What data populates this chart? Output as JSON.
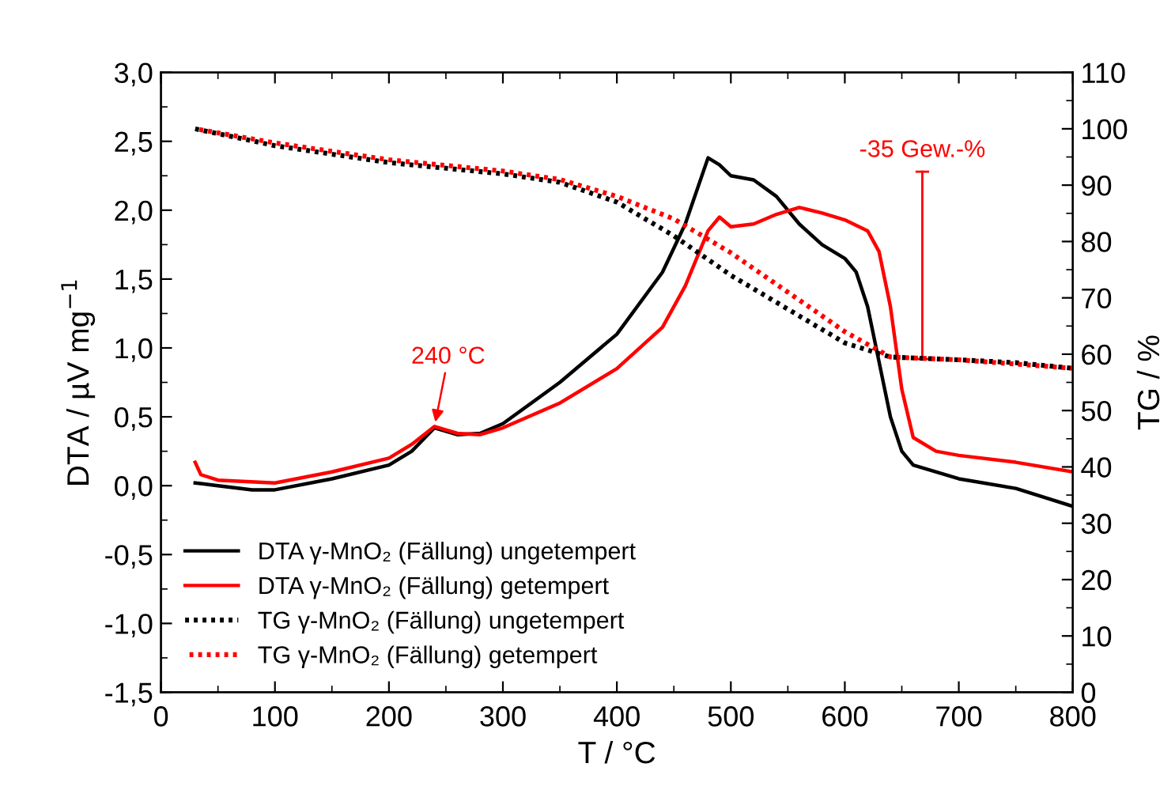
{
  "chart_data": {
    "type": "line",
    "xlabel": "T / °C",
    "ylabel": "DTA / µV mg$^{−1}$",
    "y2label": "TG / %",
    "xlim": [
      0,
      800
    ],
    "xticks": [
      0,
      100,
      200,
      300,
      400,
      500,
      600,
      700,
      800
    ],
    "ylim": [
      -1.5,
      3.0
    ],
    "yticks": [
      {
        "value": -1.5,
        "label": "-1,5"
      },
      {
        "value": -1.0,
        "label": "-1,0"
      },
      {
        "value": -0.5,
        "label": "-0,5"
      },
      {
        "value": 0.0,
        "label": "0,0"
      },
      {
        "value": 0.5,
        "label": "0,5"
      },
      {
        "value": 1.0,
        "label": "1,0"
      },
      {
        "value": 1.5,
        "label": "1,5"
      },
      {
        "value": 2.0,
        "label": "2,0"
      },
      {
        "value": 2.5,
        "label": "2,5"
      },
      {
        "value": 3.0,
        "label": "3,0"
      }
    ],
    "y2lim": [
      0,
      110
    ],
    "y2ticks": [
      0,
      10,
      20,
      30,
      40,
      50,
      60,
      70,
      80,
      90,
      100,
      110
    ],
    "grid": false,
    "legend": "bottom left",
    "series": [
      {
        "name": "DTA γ-MnO₂ (Fällung) ungetempert",
        "color": "#000000",
        "line_style": "solid",
        "x": [
          30,
          50,
          80,
          100,
          150,
          200,
          220,
          240,
          260,
          280,
          300,
          350,
          400,
          440,
          460,
          480,
          490,
          500,
          520,
          540,
          560,
          580,
          600,
          610,
          620,
          630,
          640,
          650,
          660,
          700,
          750,
          800
        ],
        "values": [
          0.02,
          0.0,
          -0.03,
          -0.03,
          0.05,
          0.15,
          0.25,
          0.42,
          0.37,
          0.38,
          0.45,
          0.75,
          1.1,
          1.55,
          1.9,
          2.38,
          2.33,
          2.25,
          2.22,
          2.1,
          1.9,
          1.75,
          1.65,
          1.55,
          1.3,
          0.9,
          0.5,
          0.25,
          0.15,
          0.05,
          -0.02,
          -0.15
        ]
      },
      {
        "name": "DTA γ-MnO₂ (Fällung) getempert",
        "color": "#ff0000",
        "line_style": "solid",
        "x": [
          30,
          35,
          50,
          100,
          150,
          200,
          220,
          240,
          260,
          280,
          300,
          350,
          400,
          440,
          460,
          480,
          490,
          500,
          520,
          540,
          560,
          580,
          600,
          620,
          630,
          640,
          650,
          660,
          680,
          700,
          750,
          800
        ],
        "values": [
          0.17,
          0.08,
          0.04,
          0.02,
          0.1,
          0.2,
          0.3,
          0.43,
          0.38,
          0.37,
          0.42,
          0.6,
          0.85,
          1.15,
          1.45,
          1.85,
          1.95,
          1.88,
          1.9,
          1.97,
          2.02,
          1.98,
          1.93,
          1.85,
          1.7,
          1.3,
          0.7,
          0.35,
          0.25,
          0.22,
          0.17,
          0.1
        ]
      },
      {
        "name": "TG γ-MnO₂ (Fällung) ungetempert",
        "color": "#000000",
        "line_style": "dotted",
        "axis": "y2",
        "x": [
          30,
          100,
          200,
          300,
          350,
          400,
          450,
          500,
          550,
          600,
          640,
          700,
          750,
          800
        ],
        "values": [
          100,
          97,
          94,
          92,
          90.5,
          87,
          81,
          74,
          68,
          62,
          59.5,
          59,
          58.5,
          57.5
        ]
      },
      {
        "name": "TG γ-MnO₂ (Fällung) getempert",
        "color": "#ff0000",
        "line_style": "dotted",
        "axis": "y2",
        "x": [
          30,
          100,
          200,
          300,
          350,
          400,
          450,
          500,
          550,
          600,
          640,
          700,
          800
        ],
        "values": [
          100,
          97.5,
          94.5,
          92.5,
          91,
          88,
          84,
          78,
          71,
          64,
          59.5,
          59,
          57.5
        ]
      }
    ],
    "annotations": [
      {
        "text": "240 °C",
        "x": 240,
        "y": 0.43
      },
      {
        "text": "-35 Gew.-%",
        "x": 668,
        "y": 0.92
      }
    ]
  }
}
